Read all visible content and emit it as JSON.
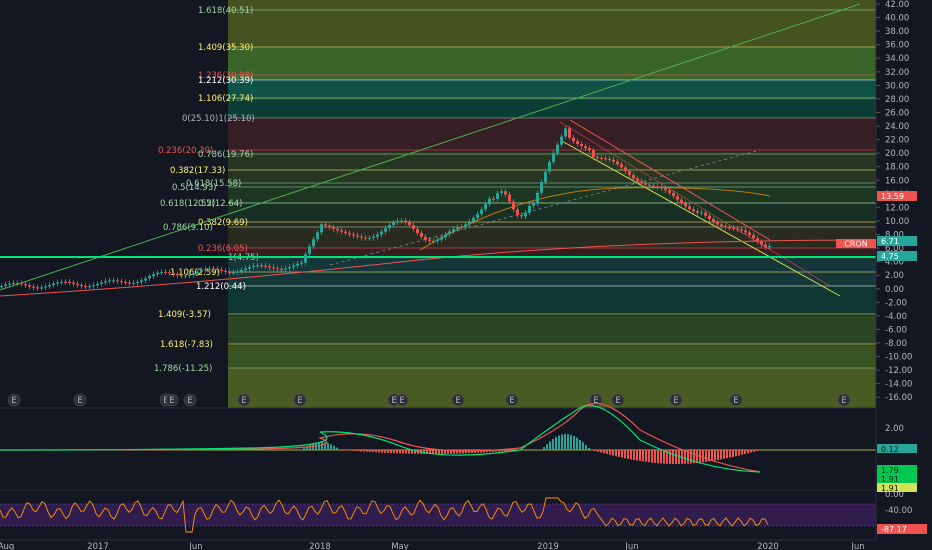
{
  "symbol_badge": "CRON",
  "right_axis": {
    "main_ticks": [
      "42.00",
      "40.00",
      "38.00",
      "36.00",
      "34.00",
      "32.00",
      "30.00",
      "28.00",
      "26.00",
      "24.00",
      "22.00",
      "20.00",
      "18.00",
      "16.00",
      "14.00",
      "12.00",
      "10.00",
      "8.00",
      "6.00",
      "4.00",
      "2.00",
      "0.00",
      "-2.00",
      "-4.00",
      "-6.00",
      "-8.00",
      "-10.00",
      "-12.00",
      "-14.00",
      "-16.00"
    ],
    "macd_ticks": [
      "2.00",
      "0.00",
      "-2.00"
    ],
    "rsi_ticks": [
      "0.00",
      "-40.00"
    ]
  },
  "price_badges": [
    {
      "label": "13.59",
      "color": "#ef5350"
    },
    {
      "label": "6.71",
      "color": "#26a69a"
    },
    {
      "label": "4.75",
      "color": "#26a69a"
    }
  ],
  "macd_badges": [
    {
      "label": "0.12",
      "color": "#26a69a"
    },
    {
      "label": "1.79",
      "color": "#00c853"
    },
    {
      "label": "1.91",
      "color": "#00c853"
    },
    {
      "label": "1.91",
      "color": "#d4e157"
    }
  ],
  "rsi_badges": [
    {
      "label": "-87.17",
      "color": "#ef5350"
    }
  ],
  "time_axis": [
    "Aug",
    "2017",
    "Jun",
    "2018",
    "May",
    "2019",
    "Jun",
    "2020",
    "Jun"
  ],
  "fib_levels_left": [
    {
      "label": "1.618(40.51)",
      "color": "#a5d6a7"
    },
    {
      "label": "1.409(35.30)",
      "color": "#fff176"
    },
    {
      "label": "1.236(30.98)",
      "color": "#ef5350"
    },
    {
      "label": "1.212(30.39)",
      "color": "#ffffff"
    },
    {
      "label": "1.106(27.74)",
      "color": "#fff176"
    },
    {
      "label": "0(25.10)1(25.10)",
      "color": "#b2b5be"
    },
    {
      "label": "0.236(20.30)",
      "color": "#ef5350"
    },
    {
      "label": "0.786(19.76)",
      "color": "#a5d6a7"
    },
    {
      "label": "0.382(17.33)",
      "color": "#fff176"
    },
    {
      "label": "0.618(15.58)",
      "color": "#a5d6a7"
    },
    {
      "label": "0.5(14.93)",
      "color": "#a5d6a7"
    },
    {
      "label": "0.618(12.52)",
      "color": "#a5d6a7"
    },
    {
      "label": "0.5(12.64)",
      "color": "#a5d6a7"
    },
    {
      "label": "0.382(9.69)",
      "color": "#fff176"
    },
    {
      "label": "0.786(9.10)",
      "color": "#a5d6a7"
    },
    {
      "label": "0.236(6.05)",
      "color": "#ef5350"
    },
    {
      "label": "1(4.75)",
      "color": "#b2b5be"
    },
    {
      "label": "1.106(2.59)",
      "color": "#fff176"
    },
    {
      "label": "1.212(0.44)",
      "color": "#ffffff"
    },
    {
      "label": "1.409(-3.57)",
      "color": "#fff176"
    },
    {
      "label": "1.618(-7.83)",
      "color": "#fff176"
    },
    {
      "label": "1.786(-11.25)",
      "color": "#a5d6a7"
    }
  ],
  "earnings_markers": [
    "E",
    "E",
    "E",
    "E",
    "E",
    "E",
    "E",
    "E",
    "E",
    "E",
    "E",
    "E",
    "E",
    "E",
    "E",
    "E"
  ]
}
